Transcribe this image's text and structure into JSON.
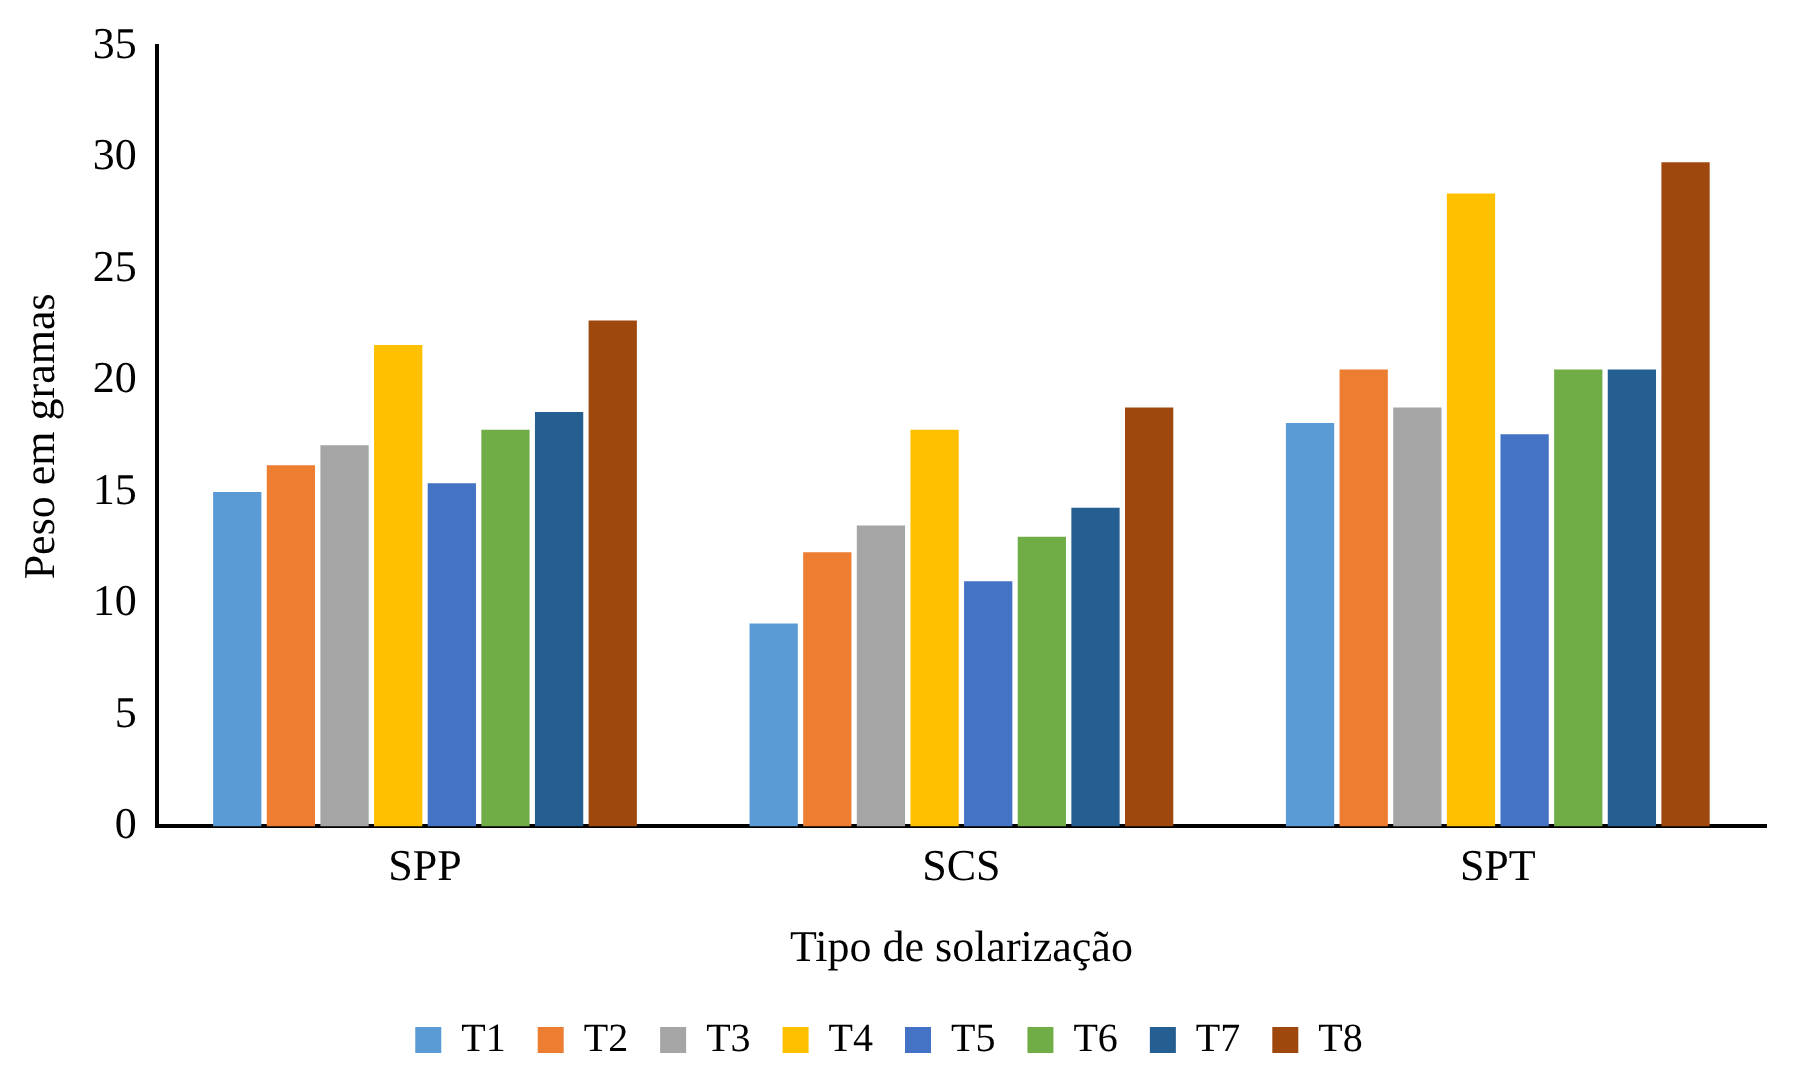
{
  "chart_data": {
    "type": "bar",
    "xlabel": "Tipo de solarização",
    "ylabel": "Peso em gramas",
    "categories": [
      "SPP",
      "SCS",
      "SPT"
    ],
    "series": [
      {
        "name": "T1",
        "color": "#5b9bd5",
        "values": [
          15.0,
          9.1,
          18.1
        ]
      },
      {
        "name": "T2",
        "color": "#ed7d31",
        "values": [
          16.2,
          12.3,
          20.5
        ]
      },
      {
        "name": "T3",
        "color": "#a5a5a5",
        "values": [
          17.1,
          13.5,
          18.8
        ]
      },
      {
        "name": "T4",
        "color": "#ffc000",
        "values": [
          21.6,
          17.8,
          28.4
        ]
      },
      {
        "name": "T5",
        "color": "#4472c4",
        "values": [
          15.4,
          11.0,
          17.6
        ]
      },
      {
        "name": "T6",
        "color": "#70ad47",
        "values": [
          17.8,
          13.0,
          20.5
        ]
      },
      {
        "name": "T7",
        "color": "#255e91",
        "values": [
          18.6,
          14.3,
          20.5
        ]
      },
      {
        "name": "T8",
        "color": "#9e480e",
        "values": [
          22.7,
          18.8,
          29.8
        ]
      }
    ],
    "ylim": [
      0,
      35
    ],
    "yticks": [
      0,
      5,
      10,
      15,
      20,
      25,
      30,
      35
    ],
    "grid": false,
    "legend": "bottom"
  }
}
